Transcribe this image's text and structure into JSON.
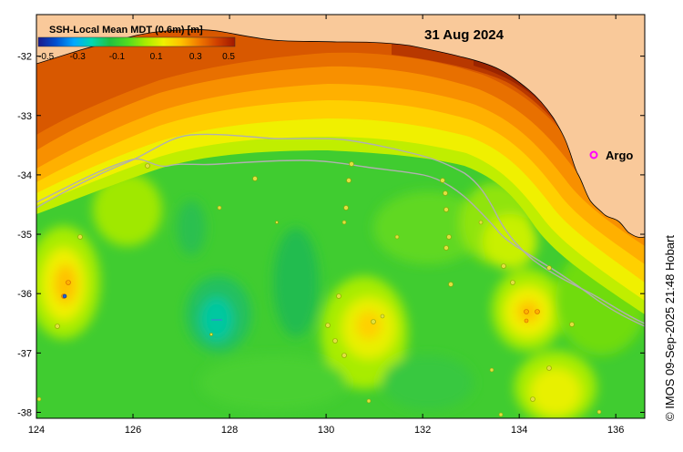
{
  "map": {
    "date_title": "31 Aug 2024",
    "credit": "© IMOS 09-Sep-2025 21:48 Hobart"
  },
  "colorbar": {
    "title": "SSH-Local Mean MDT (0.6m) [m]",
    "ticks": [
      "-0.5",
      "-0.3",
      "-0.1",
      "0.1",
      "0.3",
      "0.5"
    ],
    "range": [
      -0.5,
      0.5
    ],
    "colors": [
      "#1a1a8c",
      "#0050d0",
      "#00a8ff",
      "#00d8b0",
      "#20c040",
      "#50dc20",
      "#a8ec00",
      "#f0f000",
      "#ffc000",
      "#f07800",
      "#d04000",
      "#a01800"
    ]
  },
  "axes": {
    "x_ticks": [
      "124",
      "126",
      "128",
      "130",
      "132",
      "134",
      "136"
    ],
    "y_ticks": [
      "-32",
      "-33",
      "-34",
      "-35",
      "-36",
      "-37",
      "-38"
    ],
    "x_range": [
      124,
      136.6
    ],
    "y_range": [
      -38.1,
      -31.3
    ]
  },
  "legend": {
    "argo_label": "Argo"
  },
  "colors": {
    "land": "#f9c99a",
    "ocean_base": "#3ccc3c",
    "argo_marker": "#ff00ff"
  }
}
